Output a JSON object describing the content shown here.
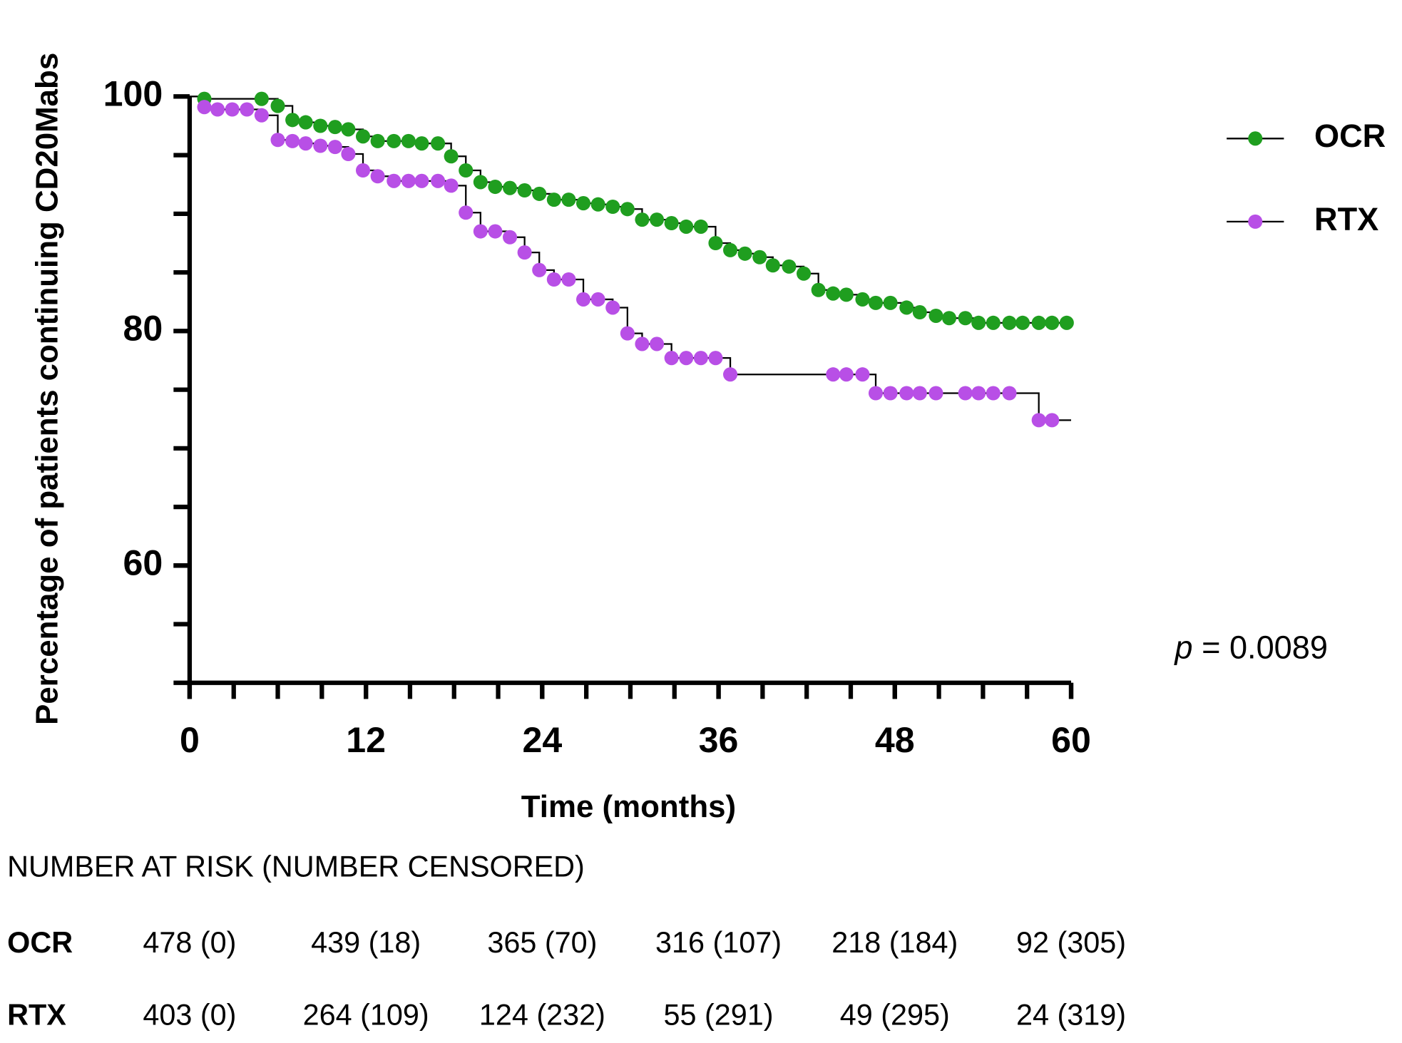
{
  "chart_data": {
    "type": "km",
    "y_label": "Percentage of patients continuing CD20Mabs",
    "x_label": "Time (months)",
    "xlim": [
      0,
      60
    ],
    "ylim": [
      50,
      100
    ],
    "xticks": [
      0,
      12,
      24,
      36,
      48,
      60
    ],
    "yticks": [
      60,
      80,
      100
    ],
    "legend": "right",
    "annotation": {
      "symbol": "p",
      "text": "= 0.0089"
    },
    "series": [
      {
        "name": "OCR",
        "color": "#1f9e1f",
        "x": [
          1,
          4.9,
          6,
          7,
          7.9,
          8.9,
          9.9,
          10.8,
          11.8,
          12.8,
          13.9,
          14.9,
          15.8,
          16.9,
          17.8,
          18.8,
          19.8,
          20.8,
          21.8,
          22.8,
          23.8,
          24.8,
          25.8,
          26.8,
          27.8,
          28.8,
          29.8,
          30.8,
          31.8,
          32.8,
          33.8,
          34.8,
          35.8,
          36.8,
          37.8,
          38.8,
          39.7,
          40.8,
          41.8,
          42.8,
          43.8,
          44.7,
          45.8,
          46.7,
          47.7,
          48.8,
          49.7,
          50.8,
          51.7,
          52.8,
          53.7,
          54.7,
          55.8,
          56.7,
          57.8,
          58.7,
          59.7
        ],
        "values": [
          99.8,
          99.8,
          99.2,
          98.0,
          97.8,
          97.5,
          97.4,
          97.2,
          96.6,
          96.2,
          96.2,
          96.2,
          96.0,
          96.0,
          94.9,
          93.7,
          92.7,
          92.3,
          92.2,
          92.0,
          91.7,
          91.2,
          91.2,
          90.9,
          90.8,
          90.6,
          90.4,
          89.5,
          89.5,
          89.2,
          88.9,
          88.9,
          87.5,
          86.9,
          86.6,
          86.3,
          85.6,
          85.5,
          84.9,
          83.5,
          83.2,
          83.1,
          82.7,
          82.4,
          82.4,
          82.0,
          81.6,
          81.3,
          81.1,
          81.1,
          80.7,
          80.7,
          80.7,
          80.7,
          80.7,
          80.7,
          80.7
        ]
      },
      {
        "name": "RTX",
        "color": "#b84fe6",
        "x": [
          1,
          1.9,
          2.9,
          3.9,
          4.9,
          6,
          7,
          7.9,
          8.9,
          9.9,
          10.8,
          11.8,
          12.8,
          13.9,
          14.9,
          15.8,
          16.9,
          17.8,
          18.8,
          19.8,
          20.8,
          21.8,
          22.8,
          23.8,
          24.8,
          25.8,
          26.8,
          27.8,
          28.8,
          29.8,
          30.8,
          31.8,
          32.8,
          33.8,
          34.8,
          35.8,
          36.8,
          43.8,
          44.7,
          45.8,
          46.7,
          47.7,
          48.8,
          49.7,
          50.8,
          52.8,
          53.7,
          54.7,
          55.8,
          57.8,
          58.7
        ],
        "values": [
          99.1,
          98.9,
          98.9,
          98.9,
          98.4,
          96.3,
          96.2,
          96.0,
          95.8,
          95.7,
          95.1,
          93.7,
          93.2,
          92.8,
          92.8,
          92.8,
          92.8,
          92.4,
          90.1,
          88.5,
          88.5,
          88.0,
          86.7,
          85.2,
          84.4,
          84.4,
          82.7,
          82.7,
          82.0,
          79.8,
          78.9,
          78.9,
          77.7,
          77.7,
          77.7,
          77.7,
          76.3,
          76.3,
          76.3,
          76.3,
          74.7,
          74.7,
          74.7,
          74.7,
          74.7,
          74.7,
          74.7,
          74.7,
          74.7,
          72.4,
          72.4
        ]
      }
    ]
  },
  "risk_table": {
    "title": "NUMBER AT RISK (NUMBER CENSORED)",
    "rows": [
      {
        "label": "OCR",
        "cells": [
          "478 (0)",
          "439 (18)",
          "365 (70)",
          "316 (107)",
          "218 (184)",
          "92 (305)"
        ]
      },
      {
        "label": "RTX",
        "cells": [
          "403 (0)",
          "264 (109)",
          "124 (232)",
          "55 (291)",
          "49 (295)",
          "24 (319)"
        ]
      }
    ]
  }
}
